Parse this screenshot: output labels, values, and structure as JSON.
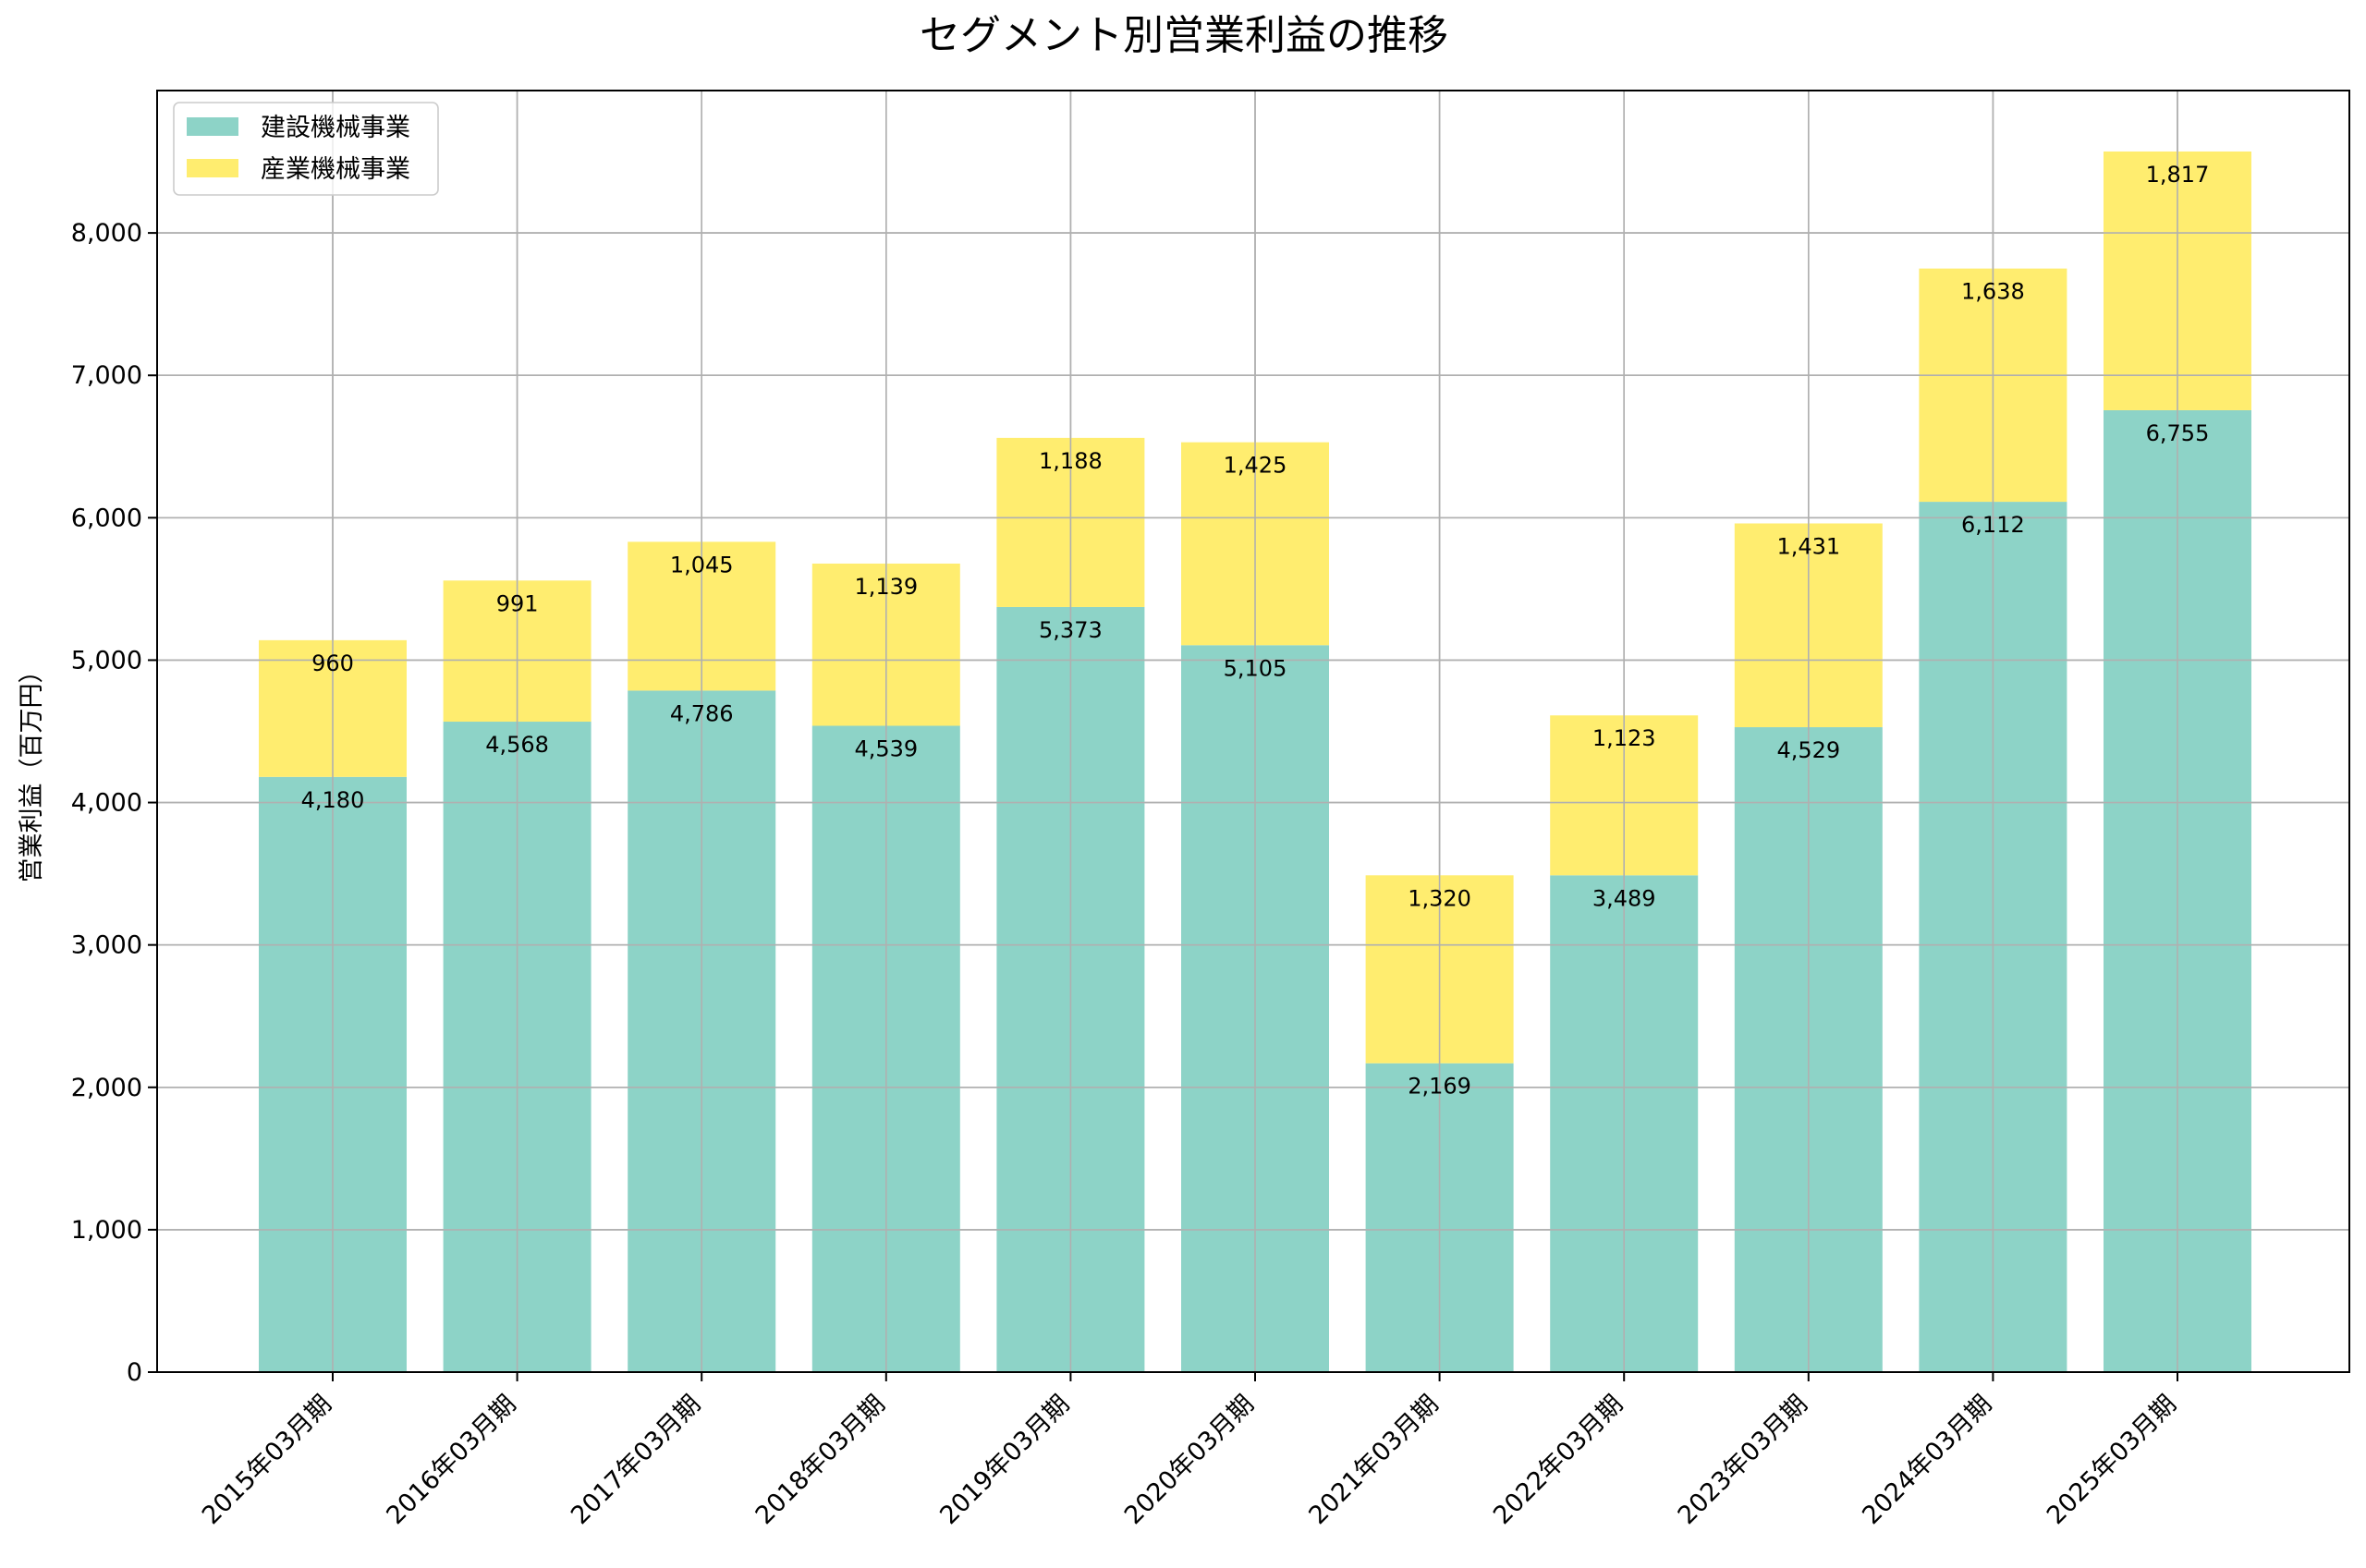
{
  "chart_data": {
    "type": "bar",
    "stacked": true,
    "title": "セグメント別営業利益の推移",
    "xlabel": "",
    "ylabel": "営業利益（百万円）",
    "ylim": [
      0,
      9000
    ],
    "yticks": [
      0,
      1000,
      2000,
      3000,
      4000,
      5000,
      6000,
      7000,
      8000
    ],
    "ytick_labels": [
      "0",
      "1,000",
      "2,000",
      "3,000",
      "4,000",
      "5,000",
      "6,000",
      "7,000",
      "8,000"
    ],
    "grid": true,
    "legend_position": "top-left",
    "categories": [
      "2015年03月期",
      "2016年03月期",
      "2017年03月期",
      "2018年03月期",
      "2019年03月期",
      "2020年03月期",
      "2021年03月期",
      "2022年03月期",
      "2023年03月期",
      "2024年03月期",
      "2025年03月期"
    ],
    "series": [
      {
        "name": "建設機械事業",
        "color": "#8dd3c7",
        "values": [
          4180,
          4568,
          4786,
          4539,
          5373,
          5105,
          2169,
          3489,
          4529,
          6112,
          6755
        ],
        "labels": [
          "4,180",
          "4,568",
          "4,786",
          "4,539",
          "5,373",
          "5,105",
          "2,169",
          "3,489",
          "4,529",
          "6,112",
          "6,755"
        ]
      },
      {
        "name": "産業機械事業",
        "color": "#ffed6f",
        "values": [
          960,
          991,
          1045,
          1139,
          1188,
          1425,
          1320,
          1123,
          1431,
          1638,
          1817
        ],
        "labels": [
          "960",
          "991",
          "1,045",
          "1,139",
          "1,188",
          "1,425",
          "1,320",
          "1,123",
          "1,431",
          "1,638",
          "1,817"
        ]
      }
    ]
  }
}
